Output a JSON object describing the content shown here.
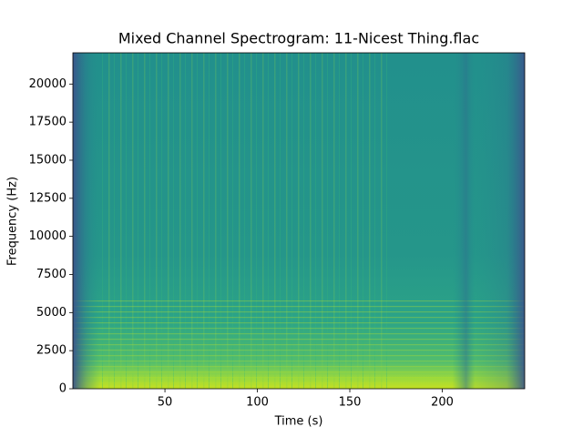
{
  "chart_data": {
    "type": "spectrogram",
    "title": "Mixed Channel Spectrogram: 11-Nicest Thing.flac",
    "x_label": "Time (s)",
    "y_label": "Frequency (Hz)",
    "xlim": [
      0.2,
      244.6
    ],
    "xticks": [
      50,
      100,
      150,
      200
    ],
    "ylim": [
      0,
      22050
    ],
    "yticks": [
      0,
      2500,
      5000,
      7500,
      10000,
      12500,
      15000,
      17500,
      20000
    ],
    "colormap": "viridis"
  }
}
